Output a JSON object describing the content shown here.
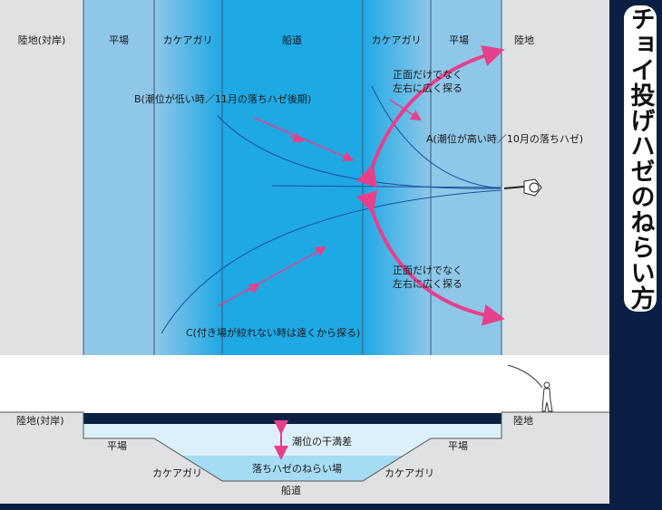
{
  "title": "チョイ投げハゼのねらい方",
  "top_zones": [
    "陸地(対岸)",
    "平場",
    "カケアガリ",
    "船道",
    "カケアガリ",
    "平場",
    "陸地"
  ],
  "annotations": {
    "a": "A(潮位が高い時／10月の落ちハゼ)",
    "b": "B(潮位が低い時／11月の落ちハゼ後期)",
    "c": "C(付き場が絞れない時は遠くから探る)",
    "sweep_top_1": "正面だけでなく",
    "sweep_top_2": "左右に広く探る",
    "sweep_bottom_1": "正面だけでなく",
    "sweep_bottom_2": "左右に広く探る"
  },
  "section": {
    "left_land": "陸地(対岸)",
    "right_land": "陸地",
    "left_flat": "平場",
    "right_flat": "平場",
    "left_slope": "カケアガリ",
    "right_slope": "カケアガリ",
    "channel": "船道",
    "tide_range": "潮位の干満差",
    "target_zone": "落ちハゼのねらい場"
  },
  "colors": {
    "land": "#e0e1e2",
    "flat": "#8fc7e9",
    "channel": "#1ea8e4",
    "arrow": "#e6408a",
    "line": "#1c4f9c",
    "background": "#0b1f44"
  }
}
